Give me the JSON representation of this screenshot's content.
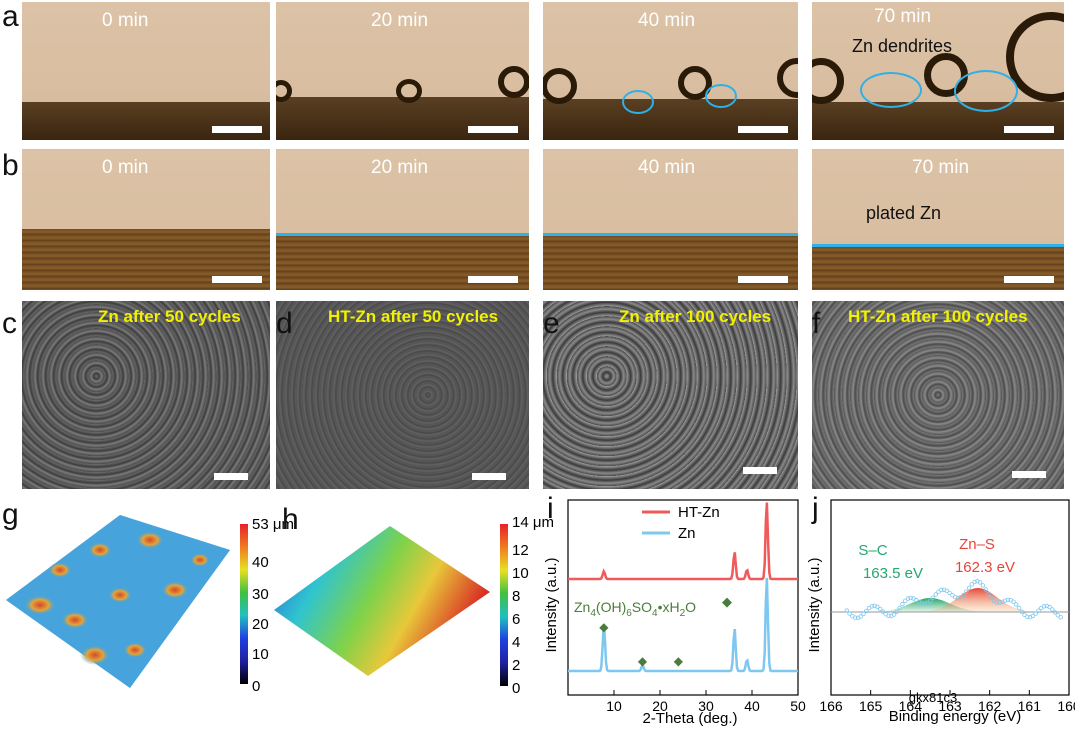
{
  "panel_labels": {
    "a": "a",
    "b": "b",
    "c": "c",
    "d": "d",
    "e": "e",
    "f": "f",
    "g": "g",
    "h": "h",
    "i": "i",
    "j": "j"
  },
  "row_a": {
    "times": [
      "0 min",
      "20 min",
      "40 min",
      "70 min"
    ],
    "annotation": "Zn dendrites"
  },
  "row_b": {
    "times": [
      "0 min",
      "20 min",
      "40 min",
      "70 min"
    ],
    "annotation": "plated Zn"
  },
  "sem": {
    "c": "Zn after 50 cycles",
    "d": "HT-Zn after 50 cycles",
    "e": "Zn after 100 cycles",
    "f": "HT-Zn after 100 cycles"
  },
  "colorbar_g": {
    "max_label": "53 μm",
    "ticks": [
      "40",
      "30",
      "20",
      "10",
      "0"
    ]
  },
  "colorbar_h": {
    "max_label": "14 μm",
    "ticks": [
      "12",
      "10",
      "8",
      "6",
      "4",
      "2",
      "0"
    ]
  },
  "colors": {
    "accent_cyan": "#2fb0e6",
    "ht_zn": "#f05a5a",
    "zn": "#7ec8f0",
    "marker": "#4a7d3c",
    "sem_title": "#f2f200"
  },
  "chart_data": [
    {
      "type": "line",
      "panel": "i",
      "xlabel": "2-Theta (deg.)",
      "ylabel": "Intensity (a.u.)",
      "xlim": [
        0,
        50
      ],
      "xticks": [
        "10",
        "20",
        "30",
        "40",
        "50"
      ],
      "legend": [
        "HT-Zn",
        "Zn"
      ],
      "annotation": "Zn4(OH)6SO4•xH2O",
      "series": [
        {
          "name": "HT-Zn",
          "peaks": [
            [
              7.8,
              0.1
            ],
            [
              36.2,
              0.35
            ],
            [
              38.9,
              0.12
            ],
            [
              43.2,
              1.0
            ]
          ]
        },
        {
          "name": "Zn",
          "peaks": [
            [
              7.8,
              0.5
            ],
            [
              16.2,
              0.06
            ],
            [
              36.2,
              0.45
            ],
            [
              38.9,
              0.12
            ],
            [
              43.2,
              1.0
            ]
          ]
        }
      ],
      "markers_x": [
        7.8,
        16.2,
        24.0
      ]
    },
    {
      "type": "line",
      "panel": "j",
      "xlabel": "Binding energy (eV)",
      "ylabel": "Intensity (a.u.)",
      "xlim": [
        166,
        160
      ],
      "xticks": [
        "166",
        "165",
        "164",
        "163",
        "162",
        "161",
        "160"
      ],
      "overlap_text": "gkx81c3",
      "peaks": [
        {
          "name": "S–C",
          "value": "163.5 eV",
          "center": 163.5
        },
        {
          "name": "Zn–S",
          "value": "162.3 eV",
          "center": 162.3
        }
      ]
    }
  ]
}
